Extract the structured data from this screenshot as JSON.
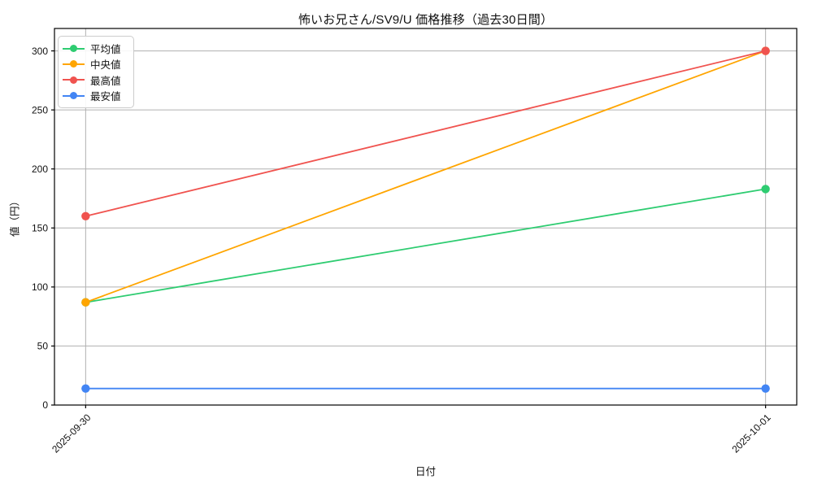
{
  "chart_data": {
    "type": "line",
    "title": "怖いお兄さん/SV9/U 価格推移（過去30日間）",
    "xlabel": "日付",
    "ylabel": "値（円）",
    "categories": [
      "2025-09-30",
      "2025-10-01"
    ],
    "series": [
      {
        "name": "平均値",
        "color": "#2ecc71",
        "values": [
          87,
          183
        ]
      },
      {
        "name": "中央値",
        "color": "#ffa500",
        "values": [
          87,
          300
        ]
      },
      {
        "name": "最高値",
        "color": "#f0534f",
        "values": [
          160,
          300
        ]
      },
      {
        "name": "最安値",
        "color": "#4285f4",
        "values": [
          14,
          14
        ]
      }
    ],
    "yticks": [
      0,
      50,
      100,
      150,
      200,
      250,
      300
    ],
    "ylim": [
      0,
      319
    ],
    "grid": true,
    "grid_color": "#b0b0b0",
    "spine_color": "#000000",
    "background": "#ffffff",
    "legend_position": "upper-left"
  }
}
